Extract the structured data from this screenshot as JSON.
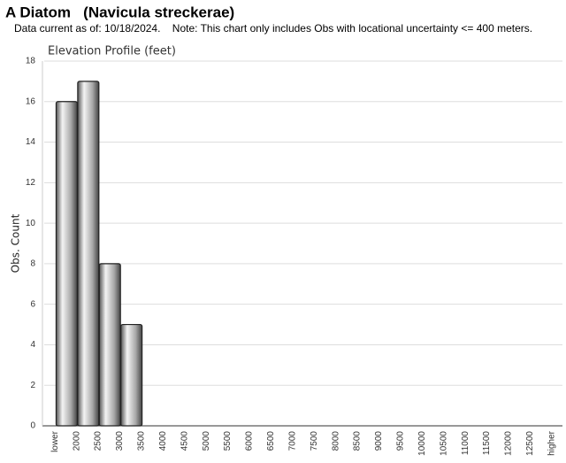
{
  "chart_data": {
    "type": "bar",
    "title": "A Diatom   (Navicula streckerae)",
    "subtitle": "Data current as of: 10/18/2024.    Note: This chart only includes Obs with locational uncertainty <= 400 meters.",
    "chart_title": "Elevation Profile (feet)",
    "y_label": "Obs. Count",
    "categories": [
      "lower",
      "2000",
      "2500",
      "3000",
      "3500",
      "4000",
      "4500",
      "5000",
      "5500",
      "6000",
      "6500",
      "7000",
      "7500",
      "8000",
      "8500",
      "9000",
      "9500",
      "10000",
      "10500",
      "11000",
      "11500",
      "12000",
      "12500",
      "higher"
    ],
    "values": [
      0,
      16,
      17,
      8,
      5,
      0,
      0,
      0,
      0,
      0,
      0,
      0,
      0,
      0,
      0,
      0,
      0,
      0,
      0,
      0,
      0,
      0,
      0,
      0
    ],
    "color": "#a8a8a8",
    "ylim": [
      0,
      18
    ],
    "yticks": [
      0,
      2,
      4,
      6,
      8,
      10,
      12,
      14,
      16,
      18
    ],
    "grid": true
  }
}
